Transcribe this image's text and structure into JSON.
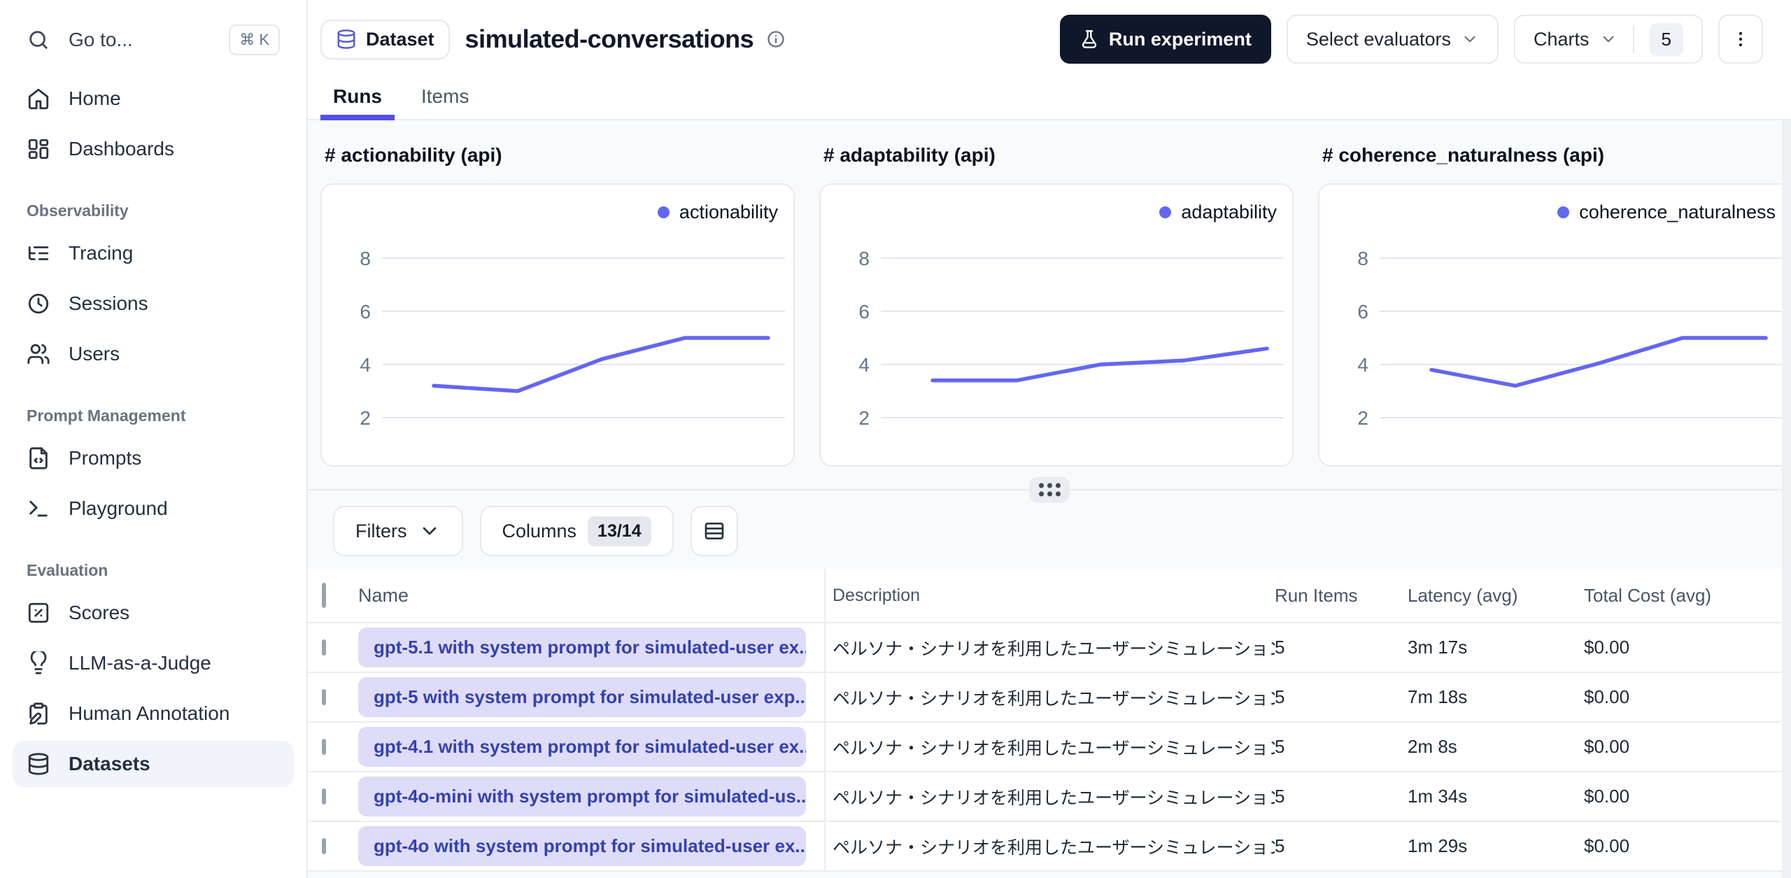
{
  "colors": {
    "accent_indigo": "#554fe8",
    "chart_line": "#6366f1",
    "name_badge_bg": "#dedcf8",
    "name_badge_text": "#3341b2",
    "dark_button_bg": "#0f172a",
    "active_item_bg": "#f1f4f8"
  },
  "sidebar": {
    "search": {
      "label": "Go to...",
      "shortcut": "⌘ K"
    },
    "sections": [
      {
        "label": "",
        "items": [
          {
            "icon": "home",
            "label": "Home",
            "active": false
          },
          {
            "icon": "dashboard",
            "label": "Dashboards",
            "active": false
          }
        ]
      },
      {
        "label": "Observability",
        "items": [
          {
            "icon": "list-tree",
            "label": "Tracing",
            "active": false
          },
          {
            "icon": "clock",
            "label": "Sessions",
            "active": false
          },
          {
            "icon": "users",
            "label": "Users",
            "active": false
          }
        ]
      },
      {
        "label": "Prompt Management",
        "items": [
          {
            "icon": "file-code",
            "label": "Prompts",
            "active": false
          },
          {
            "icon": "terminal",
            "label": "Playground",
            "active": false
          }
        ]
      },
      {
        "label": "Evaluation",
        "items": [
          {
            "icon": "square-percent",
            "label": "Scores",
            "active": false
          },
          {
            "icon": "lightbulb",
            "label": "LLM-as-a-Judge",
            "active": false
          },
          {
            "icon": "clipboard-pen",
            "label": "Human Annotation",
            "active": false
          },
          {
            "icon": "database",
            "label": "Datasets",
            "active": true
          }
        ]
      }
    ]
  },
  "header": {
    "badge_label": "Dataset",
    "title": "simulated-conversations",
    "actions": {
      "run_experiment": "Run experiment",
      "select_evaluators": "Select evaluators",
      "charts_label": "Charts",
      "charts_count": "5"
    }
  },
  "tabs": [
    {
      "label": "Runs",
      "active": true
    },
    {
      "label": "Items",
      "active": false
    }
  ],
  "chart_data": [
    {
      "type": "line",
      "title": "# actionability (api)",
      "series": [
        {
          "name": "actionability",
          "values": [
            3.2,
            3.0,
            4.2,
            5.0,
            5.0
          ]
        }
      ],
      "x": [
        1,
        2,
        3,
        4,
        5
      ],
      "yticks": [
        2,
        4,
        6,
        8
      ],
      "ylim": [
        1,
        9
      ],
      "grid": true,
      "legend_position": "top-right",
      "line_color": "#6366f1"
    },
    {
      "type": "line",
      "title": "# adaptability (api)",
      "series": [
        {
          "name": "adaptability",
          "values": [
            3.4,
            3.4,
            4.0,
            4.15,
            4.6
          ]
        }
      ],
      "x": [
        1,
        2,
        3,
        4,
        5
      ],
      "yticks": [
        2,
        4,
        6,
        8
      ],
      "ylim": [
        1,
        9
      ],
      "grid": true,
      "legend_position": "top-right",
      "line_color": "#6366f1"
    },
    {
      "type": "line",
      "title": "# coherence_naturalness (api)",
      "series": [
        {
          "name": "coherence_naturalness",
          "values": [
            3.8,
            3.2,
            4.05,
            5.0,
            5.0
          ]
        }
      ],
      "x": [
        1,
        2,
        3,
        4,
        5
      ],
      "yticks": [
        2,
        4,
        6,
        8
      ],
      "ylim": [
        1,
        9
      ],
      "grid": true,
      "legend_position": "top-right",
      "line_color": "#6366f1"
    }
  ],
  "toolbar": {
    "filters_label": "Filters",
    "columns_label": "Columns",
    "columns_count": "13/14"
  },
  "table": {
    "columns": [
      "Name",
      "Description",
      "Run Items",
      "Latency (avg)",
      "Total Cost (avg)"
    ],
    "rows": [
      {
        "name": "gpt-5.1 with system prompt for simulated-user ex...",
        "description": "ペルソナ・シナリオを利用したユーザーシミュレーション実験",
        "run_items": "5",
        "latency": "3m 17s",
        "total_cost": "$0.00"
      },
      {
        "name": "gpt-5 with system prompt for simulated-user exp...",
        "description": "ペルソナ・シナリオを利用したユーザーシミュレーション実験",
        "run_items": "5",
        "latency": "7m 18s",
        "total_cost": "$0.00"
      },
      {
        "name": "gpt-4.1 with system prompt for simulated-user ex...",
        "description": "ペルソナ・シナリオを利用したユーザーシミュレーション実験",
        "run_items": "5",
        "latency": "2m 8s",
        "total_cost": "$0.00"
      },
      {
        "name": "gpt-4o-mini with system prompt for simulated-us...",
        "description": "ペルソナ・シナリオを利用したユーザーシミュレーション実験",
        "run_items": "5",
        "latency": "1m 34s",
        "total_cost": "$0.00"
      },
      {
        "name": "gpt-4o with system prompt for simulated-user ex...",
        "description": "ペルソナ・シナリオを利用したユーザーシミュレーション実験",
        "run_items": "5",
        "latency": "1m 29s",
        "total_cost": "$0.00"
      }
    ]
  }
}
